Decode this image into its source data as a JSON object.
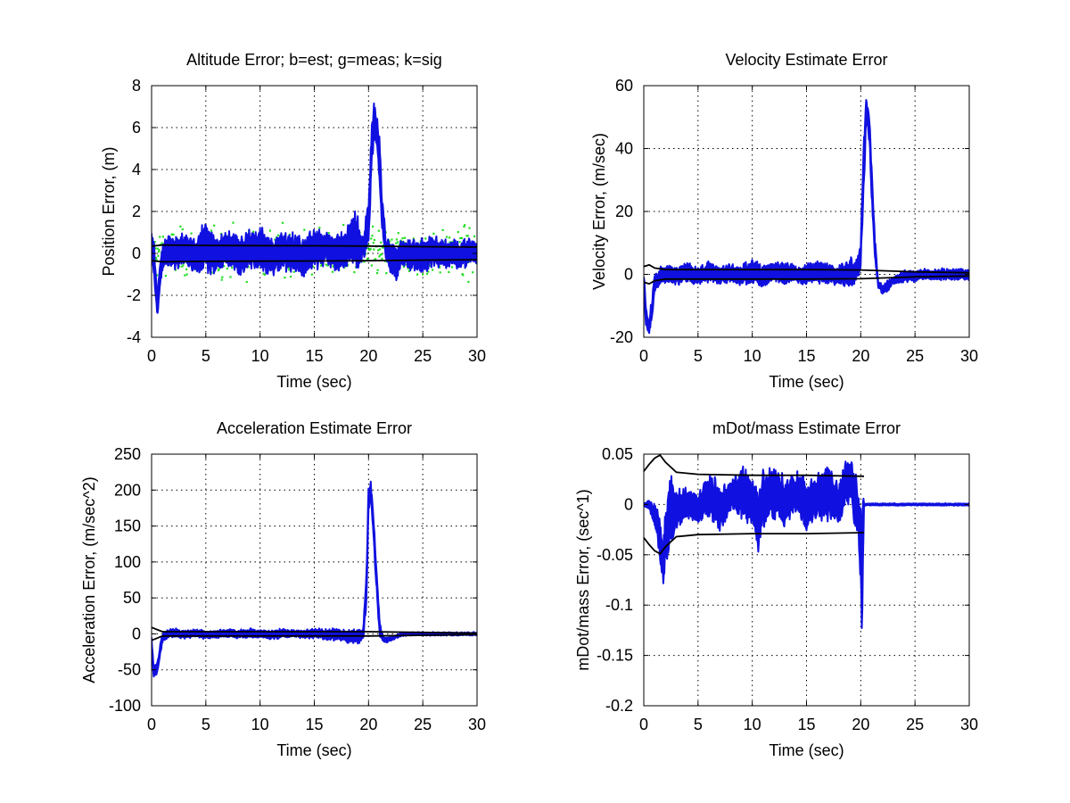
{
  "figure": {
    "background": "#ffffff"
  },
  "colors": {
    "est": "#1010e0",
    "meas": "#22dd22",
    "sig": "#000000",
    "grid": "#000000"
  },
  "chart_data": [
    {
      "type": "line",
      "title": "Altitude Error; b=est; g=meas; k=sig",
      "xlabel": "Time (sec)",
      "ylabel": "Position Error, (m)",
      "xlim": [
        0,
        30
      ],
      "ylim": [
        -4,
        8
      ],
      "xticks": [
        0,
        5,
        10,
        15,
        20,
        25,
        30
      ],
      "yticks": [
        -4,
        -2,
        0,
        2,
        4,
        6,
        8
      ],
      "xtick_labels": [
        "0",
        "5",
        "10",
        "15",
        "20",
        "25",
        "30"
      ],
      "ytick_labels": [
        "-4",
        "-2",
        "0",
        "2",
        "4",
        "6",
        "8"
      ],
      "grid": true,
      "series": [
        {
          "role": "est",
          "color": "#1010e0",
          "style": "band",
          "x": [
            0,
            0.2,
            0.5,
            1,
            1.5,
            2,
            3,
            4,
            5,
            6,
            7,
            8,
            9,
            10,
            11,
            12,
            13,
            14,
            15,
            16,
            17,
            18,
            18.5,
            19,
            19.5,
            20,
            20.3,
            20.5,
            20.8,
            21,
            21.3,
            21.6,
            22,
            22.5,
            23,
            24,
            25,
            26,
            27,
            28,
            29,
            30
          ],
          "low": [
            0.2,
            -1.2,
            -3.0,
            -0.8,
            -0.4,
            -0.6,
            -0.5,
            -0.8,
            -0.6,
            -0.9,
            -0.4,
            -1.0,
            -0.5,
            -0.7,
            -0.9,
            -0.6,
            -0.7,
            -1.0,
            -0.6,
            -0.4,
            -0.8,
            -0.5,
            -0.3,
            -0.6,
            -0.2,
            0.5,
            4.5,
            5.5,
            5.0,
            3.0,
            0.8,
            -0.3,
            -0.8,
            -1.2,
            -0.5,
            -0.7,
            -0.8,
            -0.5,
            -0.6,
            -0.6,
            -0.5,
            -0.4
          ],
          "high": [
            0.9,
            0.7,
            -1.8,
            0.4,
            0.9,
            0.7,
            0.8,
            0.6,
            1.3,
            0.6,
            1.0,
            0.6,
            1.0,
            1.1,
            0.5,
            0.9,
            0.8,
            0.6,
            1.1,
            0.9,
            0.7,
            1.0,
            2.0,
            1.5,
            0.8,
            2.5,
            6.2,
            7.1,
            6.5,
            5.5,
            2.5,
            0.5,
            0.6,
            0.3,
            0.6,
            0.5,
            0.6,
            0.7,
            0.5,
            0.5,
            0.6,
            0.5
          ]
        },
        {
          "role": "meas",
          "color": "#22dd22",
          "style": "dots",
          "count": 600,
          "x_range": [
            0,
            30
          ],
          "sigma": 0.9
        },
        {
          "role": "sig",
          "color": "#000000",
          "style": "line",
          "x": [
            0,
            1,
            5,
            10,
            15,
            20,
            25,
            30
          ],
          "y": [
            0.35,
            0.4,
            0.38,
            0.37,
            0.36,
            0.35,
            0.32,
            0.3
          ]
        },
        {
          "role": "sig",
          "color": "#000000",
          "style": "line",
          "x": [
            0,
            1,
            5,
            10,
            15,
            20,
            25,
            30
          ],
          "y": [
            -0.35,
            -0.4,
            -0.38,
            -0.37,
            -0.36,
            -0.35,
            -0.32,
            -0.3
          ]
        }
      ]
    },
    {
      "type": "line",
      "title": "Velocity Estimate Error",
      "xlabel": "Time (sec)",
      "ylabel": "Velocity Error, (m/sec)",
      "xlim": [
        0,
        30
      ],
      "ylim": [
        -20,
        60
      ],
      "xticks": [
        0,
        5,
        10,
        15,
        20,
        25,
        30
      ],
      "yticks": [
        -20,
        0,
        20,
        40,
        60
      ],
      "xtick_labels": [
        "0",
        "5",
        "10",
        "15",
        "20",
        "25",
        "30"
      ],
      "ytick_labels": [
        "-20",
        "0",
        "20",
        "40",
        "60"
      ],
      "grid": true,
      "series": [
        {
          "role": "est",
          "color": "#1010e0",
          "style": "band",
          "x": [
            0,
            0.2,
            0.5,
            0.8,
            1,
            1.5,
            2,
            3,
            4,
            5,
            6,
            7,
            8,
            9,
            10,
            11,
            12,
            13,
            14,
            15,
            16,
            17,
            18,
            19,
            19.5,
            20,
            20.3,
            20.5,
            20.8,
            21,
            21.3,
            21.6,
            22,
            22.5,
            23,
            24,
            25,
            26,
            27,
            28,
            29,
            30
          ],
          "low": [
            -5,
            -16,
            -19,
            -13,
            -5,
            -3,
            -2,
            -3,
            -2,
            -3,
            -2,
            -3,
            -2,
            -3,
            -2,
            -4,
            -2,
            -3,
            -2,
            -3,
            -2,
            -3,
            -3,
            -3,
            -2,
            2,
            30,
            48,
            42,
            25,
            5,
            -4,
            -6,
            -5,
            -3,
            -2,
            -2,
            -1.5,
            -1.5,
            -1.5,
            -1.5,
            -1.5
          ],
          "high": [
            1,
            -10,
            -15,
            -6,
            0,
            2,
            3,
            2,
            3,
            2,
            4,
            2,
            3,
            2,
            5,
            2,
            3,
            4,
            2,
            3,
            4,
            3,
            2,
            5,
            4,
            10,
            45,
            56,
            50,
            35,
            12,
            -2,
            -3,
            -2,
            -1,
            1,
            1,
            1.5,
            1.5,
            1.5,
            1.5,
            1.5
          ]
        },
        {
          "role": "sig",
          "color": "#000000",
          "style": "line",
          "x": [
            0,
            0.5,
            1,
            2,
            5,
            10,
            15,
            20,
            25,
            30
          ],
          "y": [
            2.5,
            3,
            2,
            1.5,
            1.5,
            1.5,
            1.5,
            1.4,
            0.8,
            0.5
          ]
        },
        {
          "role": "sig",
          "color": "#000000",
          "style": "line",
          "x": [
            0,
            0.5,
            1,
            2,
            5,
            10,
            15,
            20,
            25,
            30
          ],
          "y": [
            -2.5,
            -3,
            -2,
            -1.5,
            -1.5,
            -1.5,
            -1.5,
            -1.4,
            -0.8,
            -0.5
          ]
        }
      ]
    },
    {
      "type": "line",
      "title": "Acceleration Estimate Error",
      "xlabel": "Time (sec)",
      "ylabel": "Acceleration Error, (m/sec^2)",
      "xlim": [
        0,
        30
      ],
      "ylim": [
        -100,
        250
      ],
      "xticks": [
        0,
        5,
        10,
        15,
        20,
        25,
        30
      ],
      "yticks": [
        -100,
        -50,
        0,
        50,
        100,
        150,
        200,
        250
      ],
      "xtick_labels": [
        "0",
        "5",
        "10",
        "15",
        "20",
        "25",
        "30"
      ],
      "ytick_labels": [
        "-100",
        "-50",
        "0",
        "50",
        "100",
        "150",
        "200",
        "250"
      ],
      "grid": true,
      "series": [
        {
          "role": "est",
          "color": "#1010e0",
          "style": "band",
          "x": [
            0,
            0.2,
            0.5,
            0.8,
            1,
            1.5,
            2,
            3,
            4,
            5,
            6,
            7,
            8,
            9,
            10,
            11,
            12,
            13,
            14,
            15,
            16,
            17,
            18,
            19,
            19.5,
            19.8,
            20,
            20.2,
            20.4,
            20.7,
            21,
            21.3,
            21.6,
            22,
            22.5,
            23,
            24,
            25,
            26,
            27,
            28,
            29,
            30
          ],
          "low": [
            -20,
            -60,
            -55,
            -30,
            -12,
            -5,
            -4,
            -6,
            -4,
            -6,
            -5,
            -4,
            -6,
            -5,
            -4,
            -7,
            -5,
            -4,
            -6,
            -5,
            -7,
            -8,
            -10,
            -12,
            -8,
            40,
            170,
            195,
            150,
            70,
            0,
            -10,
            -12,
            -10,
            -6,
            -3,
            -2,
            -2,
            -2,
            -2,
            -2,
            -2,
            -2
          ],
          "high": [
            -5,
            -45,
            -40,
            -15,
            0,
            5,
            8,
            4,
            6,
            3,
            5,
            6,
            4,
            7,
            5,
            4,
            6,
            5,
            4,
            7,
            5,
            6,
            4,
            5,
            6,
            80,
            205,
            210,
            180,
            100,
            20,
            -3,
            -6,
            -5,
            -2,
            1,
            2,
            2,
            2,
            2,
            2,
            2,
            2
          ]
        },
        {
          "role": "sig",
          "color": "#000000",
          "style": "line",
          "x": [
            0,
            0.5,
            1,
            2,
            5,
            10,
            15,
            20,
            25,
            30
          ],
          "y": [
            9,
            6,
            3,
            3,
            3,
            3,
            3,
            3,
            2,
            1
          ]
        },
        {
          "role": "sig",
          "color": "#000000",
          "style": "line",
          "x": [
            0,
            0.5,
            1,
            2,
            5,
            10,
            15,
            20,
            25,
            30
          ],
          "y": [
            -9,
            -6,
            -3,
            -3,
            -3,
            -3,
            -3,
            -3,
            -2,
            -1
          ]
        }
      ]
    },
    {
      "type": "line",
      "title": "mDot/mass Estimate Error",
      "xlabel": "Time (sec)",
      "ylabel": "mDot/mass Error, (sec^1)",
      "xlim": [
        0,
        30
      ],
      "ylim": [
        -0.2,
        0.05
      ],
      "xticks": [
        0,
        5,
        10,
        15,
        20,
        25,
        30
      ],
      "yticks": [
        -0.2,
        -0.15,
        -0.1,
        -0.05,
        0,
        0.05
      ],
      "xtick_labels": [
        "0",
        "5",
        "10",
        "15",
        "20",
        "25",
        "30"
      ],
      "ytick_labels": [
        "-0.2",
        "-0.15",
        "-0.1",
        "-0.05",
        "0",
        "0.05"
      ],
      "grid": true,
      "series": [
        {
          "role": "est",
          "color": "#1010e0",
          "style": "band",
          "x": [
            0,
            0.5,
            1,
            1.5,
            1.8,
            2,
            2.5,
            3,
            4,
            5,
            6,
            7,
            8,
            9,
            10,
            10.5,
            11,
            12,
            13,
            14,
            15,
            16,
            17,
            18,
            18.5,
            19,
            19.5,
            19.8,
            20,
            20.1,
            20.2,
            20.3,
            21,
            22,
            25,
            30
          ],
          "low": [
            -0.001,
            -0.005,
            -0.02,
            -0.05,
            -0.078,
            -0.06,
            -0.04,
            -0.02,
            -0.012,
            -0.018,
            -0.01,
            -0.022,
            -0.005,
            -0.01,
            -0.015,
            -0.045,
            -0.02,
            -0.01,
            -0.02,
            -0.005,
            -0.025,
            -0.01,
            -0.012,
            -0.015,
            -0.005,
            0.01,
            -0.02,
            -0.025,
            -0.08,
            -0.142,
            -0.08,
            -0.001,
            -0.001,
            -0.001,
            -0.001,
            -0.001
          ],
          "high": [
            0.001,
            0.004,
            0.0,
            -0.01,
            -0.04,
            -0.01,
            0.025,
            0.01,
            0.015,
            0.01,
            0.03,
            0.015,
            0.02,
            0.035,
            0.025,
            0.005,
            0.03,
            0.035,
            0.025,
            0.03,
            0.02,
            0.025,
            0.035,
            0.02,
            0.04,
            0.048,
            0.03,
            0.01,
            0.0,
            -0.02,
            0.001,
            0.001,
            0.001,
            0.001,
            0.001,
            0.001
          ]
        },
        {
          "role": "sig",
          "color": "#000000",
          "style": "line",
          "x": [
            0,
            0.5,
            1,
            1.5,
            2,
            3,
            5,
            10,
            15,
            20.3
          ],
          "y": [
            0.033,
            0.04,
            0.046,
            0.049,
            0.042,
            0.032,
            0.03,
            0.029,
            0.029,
            0.028
          ]
        },
        {
          "role": "sig",
          "color": "#000000",
          "style": "line",
          "x": [
            0,
            0.5,
            1,
            1.5,
            2,
            3,
            5,
            10,
            15,
            20.3
          ],
          "y": [
            -0.033,
            -0.04,
            -0.046,
            -0.049,
            -0.042,
            -0.032,
            -0.03,
            -0.029,
            -0.029,
            -0.028
          ]
        }
      ]
    }
  ]
}
